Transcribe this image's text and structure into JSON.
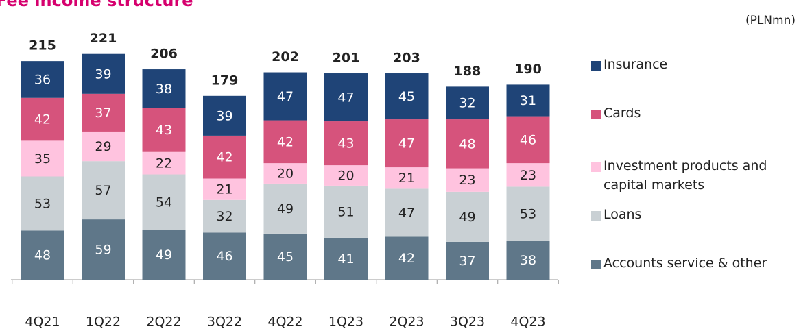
{
  "chart_data": {
    "type": "stacked_bar",
    "title": "Fee  income structure",
    "unit_label": "(PLNmn)",
    "categories": [
      "4Q21",
      "1Q22",
      "2Q22",
      "3Q22",
      "4Q22",
      "1Q23",
      "2Q23",
      "3Q23",
      "4Q23"
    ],
    "series": [
      {
        "name": "Accounts service & other",
        "color": "#5f7789",
        "label_color": "#ffffff",
        "values": [
          48,
          59,
          49,
          46,
          45,
          41,
          42,
          37,
          38
        ]
      },
      {
        "name": "Loans",
        "color": "#c9d0d4",
        "label_color": "#222222",
        "values": [
          53,
          57,
          54,
          32,
          49,
          51,
          47,
          49,
          53
        ]
      },
      {
        "name": "Investment products and capital markets",
        "color": "#ffc3df",
        "label_color": "#222222",
        "values": [
          35,
          29,
          22,
          21,
          20,
          20,
          21,
          23,
          23
        ]
      },
      {
        "name": "Cards",
        "color": "#d6537c",
        "label_color": "#ffffff",
        "values": [
          42,
          37,
          43,
          42,
          42,
          43,
          47,
          48,
          46
        ]
      },
      {
        "name": "Insurance",
        "color": "#1f4477",
        "label_color": "#ffffff",
        "values": [
          36,
          39,
          38,
          39,
          47,
          47,
          45,
          32,
          31
        ]
      }
    ],
    "totals": [
      215,
      221,
      206,
      179,
      202,
      201,
      203,
      188,
      190
    ]
  }
}
